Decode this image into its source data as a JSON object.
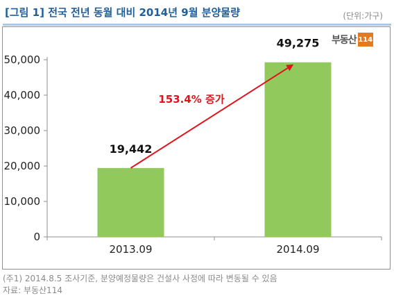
{
  "header": {
    "title": "[그림 1] 전국 전년 동월 대비 2014년 9월 분양물량",
    "unit": "(단위:가구)"
  },
  "logo": {
    "text": "부동산",
    "number": "114",
    "color": "#e37a1f"
  },
  "annotation": {
    "text": "153.4% 증가",
    "color": "#e0141e"
  },
  "notes": {
    "note": "(주1) 2014.8.5 조사기준, 분양예정물량은 건설사 사정에 따라 변동될 수 있음",
    "source": "자료: 부동산114"
  },
  "chart_data": {
    "type": "bar",
    "categories": [
      "2013.09",
      "2014.09"
    ],
    "values": [
      19442,
      49275
    ],
    "value_labels": [
      "19,442",
      "49,275"
    ],
    "ylim": [
      0,
      50000
    ],
    "yticks": [
      "0",
      "10,000",
      "20,000",
      "30,000",
      "40,000",
      "50,000"
    ],
    "bar_color": "#92c95c",
    "grid": false
  }
}
